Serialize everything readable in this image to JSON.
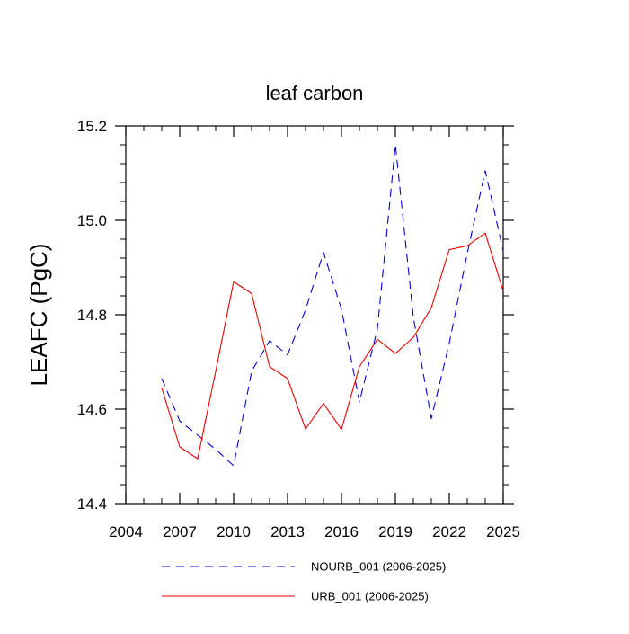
{
  "chart_data": {
    "type": "line",
    "title": "leaf carbon",
    "xlabel": "",
    "ylabel": "LEAFC  (PgC)",
    "xlim": [
      2004,
      2025
    ],
    "ylim": [
      14.4,
      15.2
    ],
    "x_ticks": [
      2004,
      2007,
      2010,
      2013,
      2016,
      2019,
      2022,
      2025
    ],
    "x_tick_labels": [
      "2004",
      "2007",
      "2010",
      "2013",
      "2016",
      "2019",
      "2022",
      "2025"
    ],
    "y_ticks": [
      14.4,
      14.6,
      14.8,
      15.0,
      15.2
    ],
    "y_tick_labels": [
      "14.4",
      "14.6",
      "14.8",
      "15.0",
      "15.2"
    ],
    "grid": false,
    "legend_position": "bottom",
    "x": [
      2006,
      2007,
      2008,
      2009,
      2010,
      2011,
      2012,
      2013,
      2014,
      2015,
      2016,
      2017,
      2018,
      2019,
      2020,
      2021,
      2022,
      2023,
      2024,
      2025
    ],
    "series": [
      {
        "name": "NOURB_001 (2006-2025)",
        "color": "#0000dd",
        "dash": "dashed",
        "values": [
          14.665,
          14.575,
          14.545,
          14.515,
          14.48,
          14.68,
          14.745,
          14.715,
          14.81,
          14.932,
          14.812,
          14.615,
          14.77,
          15.16,
          14.795,
          14.58,
          14.74,
          14.93,
          15.105,
          14.935
        ]
      },
      {
        "name": "URB_001 (2006-2025)",
        "color": "#ee0000",
        "dash": "solid",
        "values": [
          14.645,
          14.52,
          14.495,
          14.68,
          14.87,
          14.845,
          14.69,
          14.665,
          14.558,
          14.612,
          14.557,
          14.69,
          14.748,
          14.718,
          14.752,
          14.815,
          14.938,
          14.946,
          14.973,
          14.85
        ]
      }
    ]
  }
}
